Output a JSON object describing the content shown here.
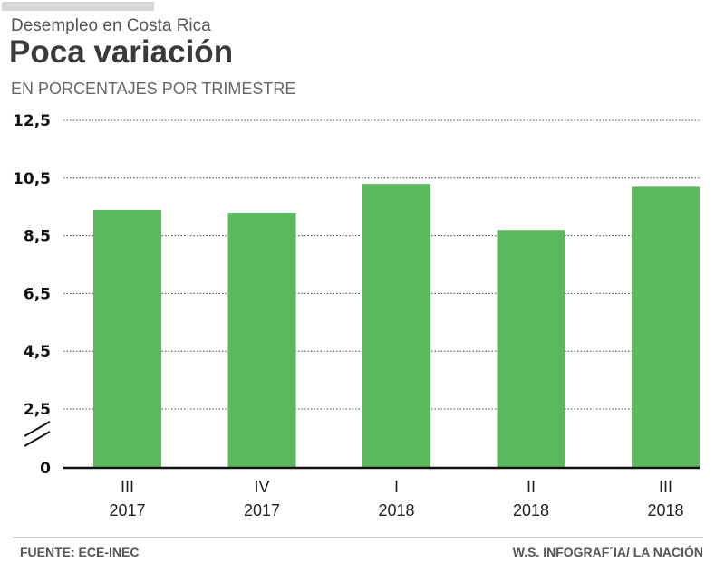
{
  "header": {
    "subtitle": "Desempleo en Costa Rica",
    "title": "Poca variación",
    "units": "EN PORCENTAJES POR TRIMESTRE"
  },
  "footer": {
    "source": "FUENTE: ECE-INEC",
    "credit": "W.S. INFOGRAF´IA/ LA NACIÓN"
  },
  "colors": {
    "bar": "#5cb85c",
    "grid": "#444444",
    "axis": "#111111"
  },
  "chart_data": {
    "type": "bar",
    "title": "Poca variación",
    "subtitle": "Desempleo en Costa Rica",
    "ylabel": "EN PORCENTAJES POR TRIMESTRE",
    "xlabel": "",
    "categories": [
      {
        "quarter": "III",
        "year": "2017"
      },
      {
        "quarter": "IV",
        "year": "2017"
      },
      {
        "quarter": "I",
        "year": "2018"
      },
      {
        "quarter": "II",
        "year": "2018"
      },
      {
        "quarter": "III",
        "year": "2018"
      }
    ],
    "values": [
      9.4,
      9.3,
      10.3,
      8.7,
      10.2
    ],
    "yticks": [
      {
        "value": 0,
        "label": "0"
      },
      {
        "value": 2.5,
        "label": "2,5"
      },
      {
        "value": 4.5,
        "label": "4,5"
      },
      {
        "value": 6.5,
        "label": "6,5"
      },
      {
        "value": 8.5,
        "label": "8,5"
      },
      {
        "value": 10.5,
        "label": "10,5"
      },
      {
        "value": 12.5,
        "label": "12,5"
      }
    ],
    "ylim": [
      0,
      12.5
    ],
    "axis_break": true,
    "grid": true,
    "legend": "none",
    "source": "FUENTE: ECE-INEC"
  }
}
